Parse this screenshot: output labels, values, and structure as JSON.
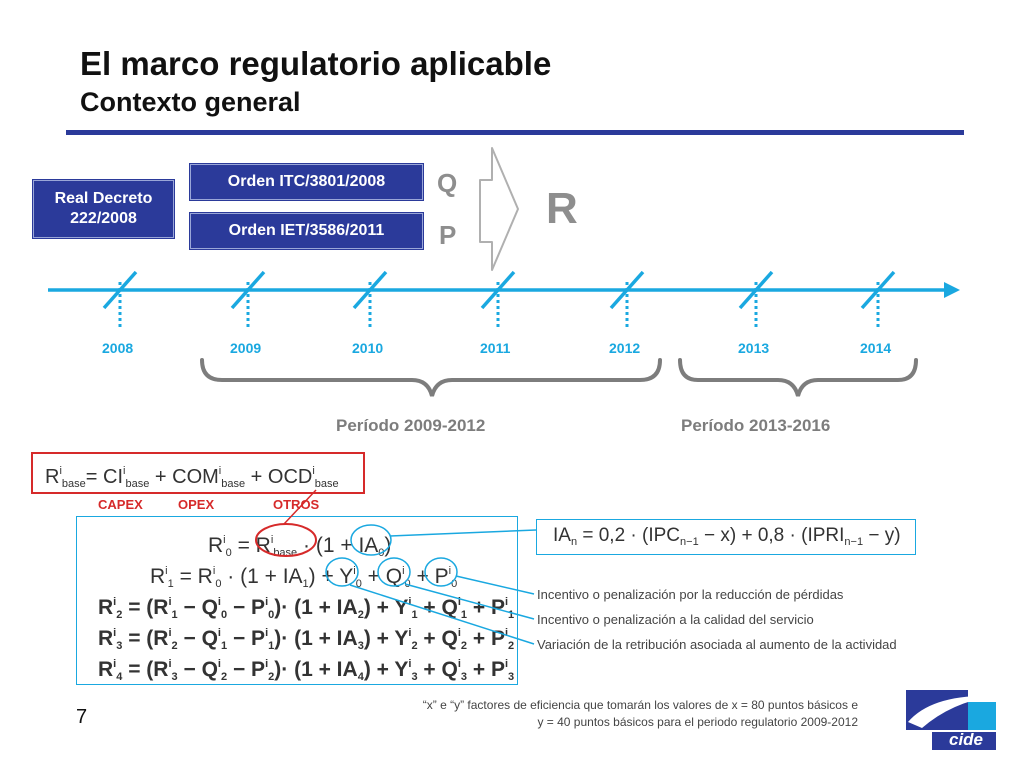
{
  "header": {
    "title": "El marco regulatorio aplicable",
    "subtitle": "Contexto general"
  },
  "regulations": {
    "real_decreto_line1": "Real Decreto",
    "real_decreto_line2": "222/2008",
    "orden_itc": "Orden  ITC/3801/2008",
    "orden_iet": "Orden IET/3586/2011"
  },
  "flow": {
    "q": "Q",
    "p": "P",
    "r": "R"
  },
  "timeline": {
    "years": [
      "2008",
      "2009",
      "2010",
      "2011",
      "2012",
      "2013",
      "2014"
    ]
  },
  "periods": {
    "p1": "Período 2009-2012",
    "p2": "Período 2013-2016"
  },
  "base_formula": {
    "labels": {
      "capex": "CAPEX",
      "opex": "OPEX",
      "otros": "OTROS"
    }
  },
  "ia_formula": "IAn = 0,2 · (IPCn−1 − x) + 0,8 · (IPRIn−1 − y)",
  "annotations": {
    "perdidas": "Incentivo o penalización por la reducción de pérdidas",
    "calidad": "Incentivo o penalización a la calidad del servicio",
    "actividad": "Variación de la retribución asociada al aumento de la actividad"
  },
  "footnote": {
    "line1": "“x” e “y” factores de eficiencia que tomarán los valores de x = 80 puntos básicos e",
    "line2": "y = 40 puntos básicos para el periodo regulatorio 2009-2012"
  },
  "page_number": "7",
  "logo_text": "cide",
  "colors": {
    "navy": "#2b3a9a",
    "timeline": "#1aa8e0",
    "red": "#d62a2a",
    "grey": "#8e8e8e"
  }
}
